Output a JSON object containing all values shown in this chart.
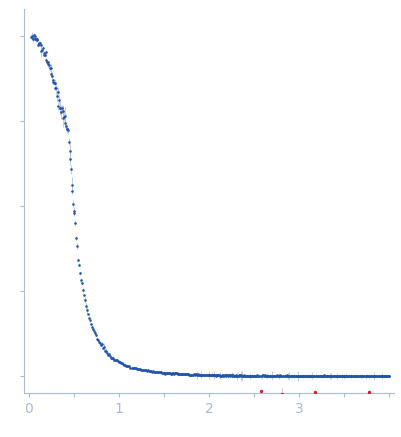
{
  "title": "",
  "xlabel": "",
  "ylabel": "",
  "xlim": [
    -0.05,
    4.05
  ],
  "ylim": [
    -0.05,
    1.08
  ],
  "background_color": "#ffffff",
  "dot_color_blue": "#2255aa",
  "dot_color_red": "#cc2222",
  "error_color": "#aabbd4",
  "axis_color": "#aabbd4",
  "tick_color": "#aabbd4",
  "label_color": "#aabbd4",
  "xticks": [
    0,
    1,
    2,
    3
  ],
  "figsize": [
    4.02,
    4.37
  ],
  "dpi": 100
}
